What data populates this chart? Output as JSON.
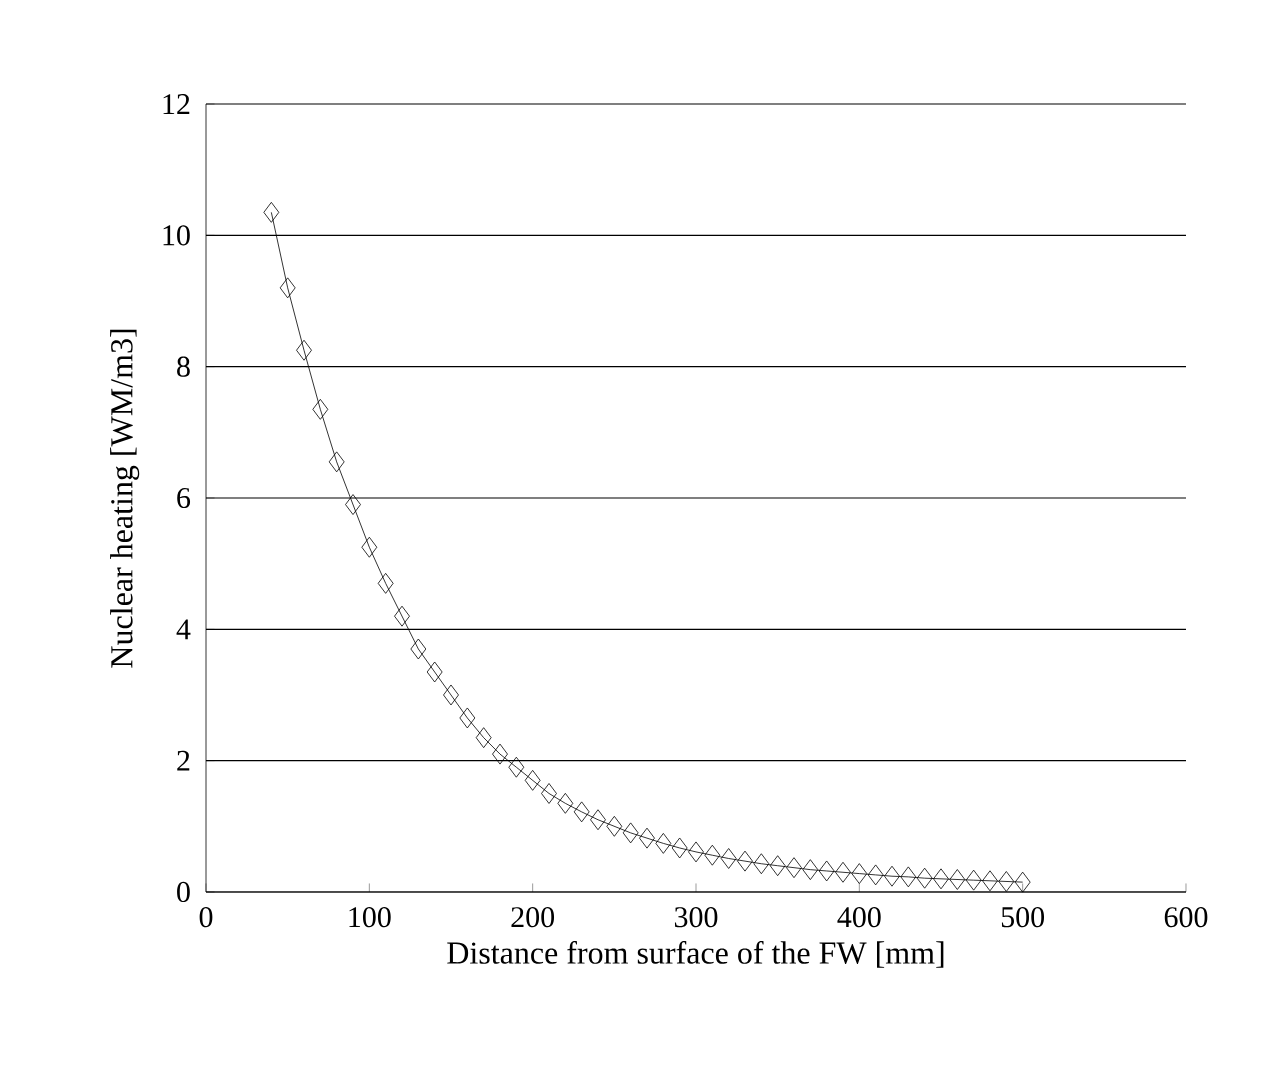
{
  "chart_data": {
    "type": "line",
    "xlabel": "Distance from surface of the FW [mm]",
    "ylabel": "Nuclear heating [WM/m3]",
    "x": [
      40,
      50,
      60,
      70,
      80,
      90,
      100,
      110,
      120,
      130,
      140,
      150,
      160,
      170,
      180,
      190,
      200,
      210,
      220,
      230,
      240,
      250,
      260,
      270,
      280,
      290,
      300,
      310,
      320,
      330,
      340,
      350,
      360,
      370,
      380,
      390,
      400,
      410,
      420,
      430,
      440,
      450,
      460,
      470,
      480,
      490,
      500
    ],
    "series": [
      {
        "color": "#000000",
        "values": [
          10.35,
          9.2,
          8.25,
          7.35,
          6.55,
          5.9,
          5.25,
          4.7,
          4.2,
          3.7,
          3.35,
          3.0,
          2.65,
          2.35,
          2.1,
          1.9,
          1.7,
          1.5,
          1.35,
          1.22,
          1.1,
          1.0,
          0.9,
          0.82,
          0.74,
          0.67,
          0.61,
          0.56,
          0.51,
          0.47,
          0.43,
          0.4,
          0.37,
          0.34,
          0.32,
          0.3,
          0.28,
          0.26,
          0.24,
          0.23,
          0.21,
          0.2,
          0.19,
          0.18,
          0.17,
          0.16,
          0.15
        ]
      }
    ],
    "xlim": [
      0,
      600
    ],
    "ylim": [
      0,
      12
    ],
    "xticks": [
      0,
      100,
      200,
      300,
      400,
      500,
      600
    ],
    "yticks": [
      0,
      2,
      4,
      6,
      8,
      10,
      12
    ],
    "grid": "y",
    "marker": "diamond",
    "line_style": "solid"
  }
}
